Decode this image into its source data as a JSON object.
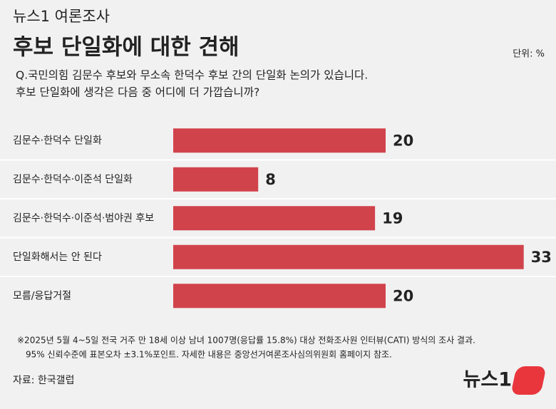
{
  "chart_data": {
    "type": "bar",
    "kicker": "뉴스1 여론조사",
    "title": "후보 단일화에 대한 견해",
    "unit": "단위: %",
    "question": [
      "Q.국민의힘 김문수 후보와 무소속 한덕수 후보 간의 단일화 논의가 있습니다.",
      "후보 단일화에 생각은 다음 중 어디에 더 가깝습니까?"
    ],
    "categories": [
      "김문수·한덕수 단일화",
      "김문수·한덕수·이준석 단일화",
      "김문수·한덕수·이준석·범야권 후보",
      "단일화해서는 안 된다",
      "모름/응답거절"
    ],
    "values": [
      20,
      8,
      19,
      33,
      20
    ],
    "color": "#d1434b",
    "footnote": [
      "※2025년 5월 4~5일 전국 거주 만 18세 이상 남녀 1007명(응답률 15.8%) 대상 전화조사원 인터뷰(CATI) 방식의 조사 결과.",
      "95% 신뢰수준에 표본오차 ±3.1%포인트. 자세한 내용은 중앙선거여론조사심의위원회 홈페이지 참조."
    ],
    "source": "자료: 한국갤럽",
    "logo": "뉴스1"
  }
}
